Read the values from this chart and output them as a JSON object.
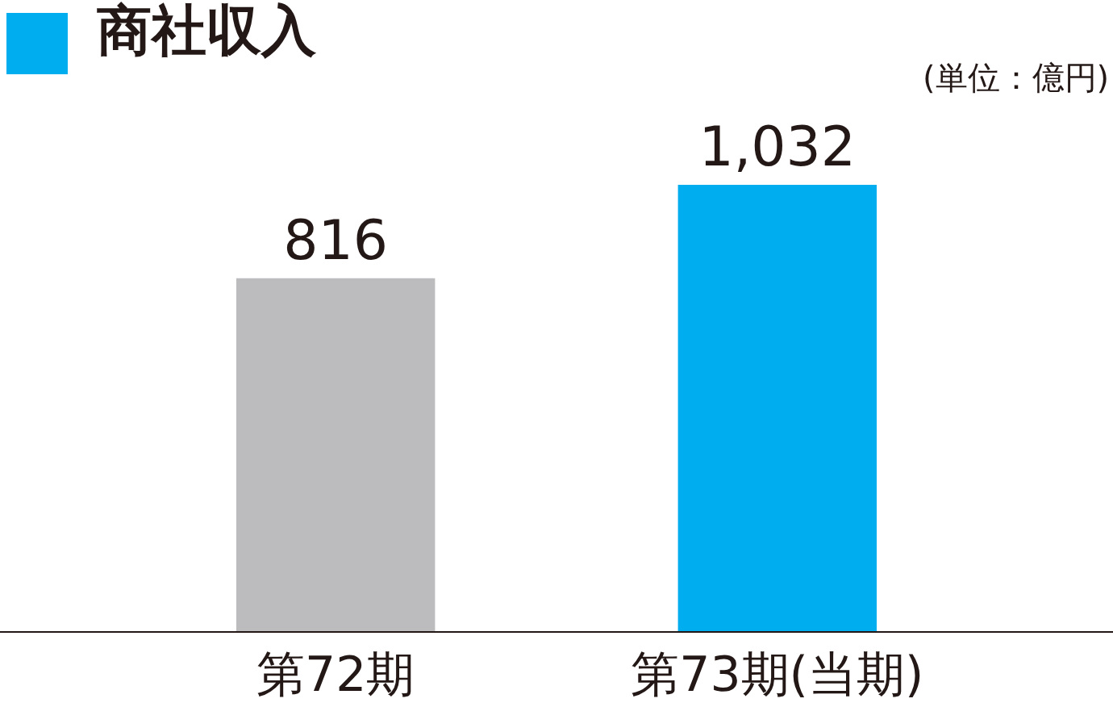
{
  "chart_data": {
    "type": "bar",
    "title": "商社収入",
    "annotations": [
      "(単位：億円)"
    ],
    "categories": [
      "第72期",
      "第73期(当期)"
    ],
    "values": [
      816,
      1032
    ],
    "colors": [
      "#bcbcbe",
      "#00aeef"
    ],
    "value_labels": [
      "816",
      "1,032"
    ]
  }
}
